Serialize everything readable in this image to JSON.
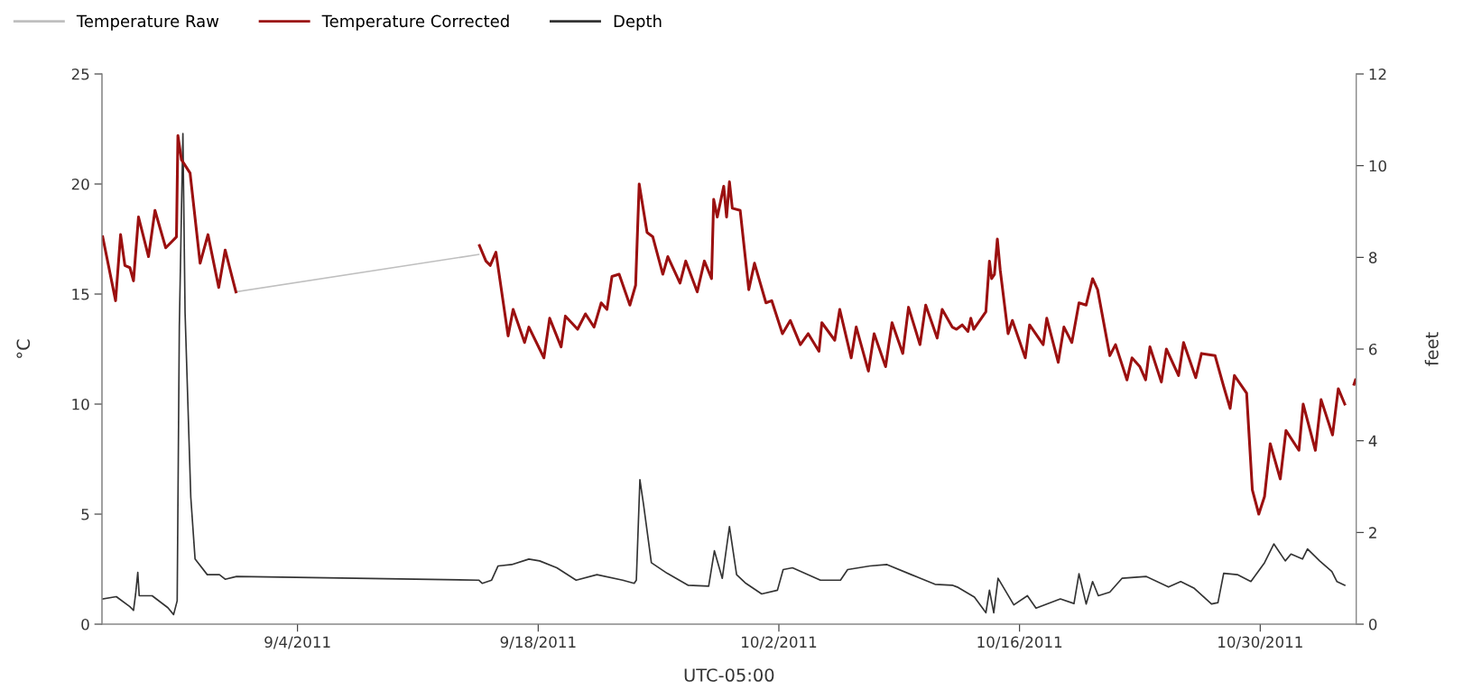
{
  "chart_data": {
    "type": "line",
    "xlabel": "UTC-05:00",
    "ylabel": "°C",
    "y2label": "feet",
    "xlim": [
      "2011-08-23T15:00",
      "2011-11-04T14:00"
    ],
    "xticks": [
      {
        "value": "2011-09-04",
        "label": "9/4/2011"
      },
      {
        "value": "2011-09-18",
        "label": "9/18/2011"
      },
      {
        "value": "2011-10-02",
        "label": "10/2/2011"
      },
      {
        "value": "2011-10-16",
        "label": "10/16/2011"
      },
      {
        "value": "2011-10-30",
        "label": "10/30/2011"
      }
    ],
    "ylim": [
      0,
      25
    ],
    "yticks": [
      0,
      5,
      10,
      15,
      20,
      25
    ],
    "y2lim": [
      0,
      12
    ],
    "y2ticks": [
      0,
      2,
      4,
      6,
      8,
      10,
      12
    ],
    "grid": false,
    "legend": "top left",
    "marker": "none",
    "line_style": "solid",
    "series": [
      {
        "name": "Temperature Raw",
        "color": "#bfbfbf",
        "x": [
          "2011-08-31T10:00",
          "2011-09-14T13:00"
        ],
        "values": [
          15.1,
          16.8
        ]
      },
      {
        "name": "Temperature Corrected",
        "color": "#9b1010",
        "x": [
          "2011-08-23T16:00",
          "2011-08-24T10:00",
          "2011-08-24T17:00",
          "2011-08-24T23:00",
          "2011-08-25T06:00",
          "2011-08-25T11:00",
          "2011-08-25T18:00",
          "2011-08-26T08:00",
          "2011-08-26T17:00",
          "2011-08-27T08:00",
          "2011-08-27T23:00",
          "2011-08-28T01:00",
          "2011-08-28T06:00",
          "2011-08-28T18:00",
          "2011-08-29T08:00",
          "2011-08-29T19:00",
          "2011-08-30T10:00",
          "2011-08-30T19:00",
          "2011-08-31T10:00",
          "2011-09-07T00:00",
          "2011-09-14T14:00",
          "2011-09-14T23:00",
          "2011-09-15T05:00",
          "2011-09-15T13:00",
          "2011-09-16T06:00",
          "2011-09-16T13:00",
          "2011-09-17T05:00",
          "2011-09-17T11:00",
          "2011-09-18T08:00",
          "2011-09-18T16:00",
          "2011-09-19T08:00",
          "2011-09-19T14:00",
          "2011-09-20T07:00",
          "2011-09-20T18:00",
          "2011-09-21T06:00",
          "2011-09-21T16:00",
          "2011-09-22T00:00",
          "2011-09-22T07:00",
          "2011-09-22T17:00",
          "2011-09-23T08:00",
          "2011-09-23T16:00",
          "2011-09-23T21:00",
          "2011-09-24T08:00",
          "2011-09-24T16:00",
          "2011-09-25T06:00",
          "2011-09-25T13:00",
          "2011-09-26T06:00",
          "2011-09-26T14:00",
          "2011-09-27T06:00",
          "2011-09-27T16:00",
          "2011-09-28T02:00",
          "2011-09-28T05:00",
          "2011-09-28T10:00",
          "2011-09-28T19:00",
          "2011-09-28T23:00",
          "2011-09-29T03:00",
          "2011-09-29T07:00",
          "2011-09-29T18:00",
          "2011-09-30T06:00",
          "2011-09-30T14:00",
          "2011-10-01T06:00",
          "2011-10-01T14:00",
          "2011-10-02T05:00",
          "2011-10-02T16:00",
          "2011-10-03T06:00",
          "2011-10-03T17:00",
          "2011-10-04T08:00",
          "2011-10-04T12:00",
          "2011-10-05T06:00",
          "2011-10-05T13:00",
          "2011-10-06T05:00",
          "2011-10-06T12:00",
          "2011-10-07T05:00",
          "2011-10-07T13:00",
          "2011-10-08T05:00",
          "2011-10-08T14:00",
          "2011-10-09T05:00",
          "2011-10-09T13:00",
          "2011-10-10T05:00",
          "2011-10-10T13:00",
          "2011-10-11T05:00",
          "2011-10-11T12:00",
          "2011-10-12T02:00",
          "2011-10-12T08:00",
          "2011-10-12T16:00",
          "2011-10-13T00:00",
          "2011-10-13T04:00",
          "2011-10-13T08:00",
          "2011-10-14T01:00",
          "2011-10-14T06:00",
          "2011-10-14T09:00",
          "2011-10-14T13:00",
          "2011-10-14T17:00",
          "2011-10-14T21:00",
          "2011-10-15T08:00",
          "2011-10-15T14:00",
          "2011-10-16T08:00",
          "2011-10-16T14:00",
          "2011-10-17T09:00",
          "2011-10-17T14:00",
          "2011-10-18T06:00",
          "2011-10-18T14:00",
          "2011-10-19T01:00",
          "2011-10-19T11:00",
          "2011-10-19T21:00",
          "2011-10-20T06:00",
          "2011-10-20T13:00",
          "2011-10-21T06:00",
          "2011-10-21T14:00",
          "2011-10-22T06:00",
          "2011-10-22T13:00",
          "2011-10-23T00:00",
          "2011-10-23T08:00",
          "2011-10-23T14:00",
          "2011-10-24T06:00",
          "2011-10-24T13:00",
          "2011-10-25T06:00",
          "2011-10-25T13:00",
          "2011-10-26T06:00",
          "2011-10-26T14:00",
          "2011-10-27T09:00",
          "2011-10-27T21:00",
          "2011-10-28T06:00",
          "2011-10-28T12:00",
          "2011-10-29T05:00",
          "2011-10-29T13:00",
          "2011-10-29T22:00",
          "2011-10-30T06:00",
          "2011-10-30T14:00",
          "2011-10-31T04:00",
          "2011-10-31T12:00",
          "2011-11-01T06:00",
          "2011-11-01T12:00",
          "2011-11-02T05:00",
          "2011-11-02T13:00",
          "2011-11-03T05:00",
          "2011-11-03T13:00",
          "2011-11-03T22:00",
          "2011-11-04T06:00",
          "2011-11-04T11:00",
          "2011-11-04T13:00"
        ],
        "values": [
          17.6,
          14.7,
          17.7,
          16.3,
          16.2,
          15.6,
          18.5,
          16.7,
          18.8,
          17.1,
          17.6,
          22.2,
          21.1,
          20.5,
          16.4,
          17.7,
          15.3,
          17.0,
          15.1,
          null,
          17.2,
          16.5,
          16.3,
          16.9,
          13.1,
          14.3,
          12.8,
          13.5,
          12.1,
          13.9,
          12.6,
          14.0,
          13.4,
          14.1,
          13.5,
          14.6,
          14.3,
          15.8,
          15.9,
          14.5,
          15.4,
          20.0,
          17.8,
          17.6,
          15.9,
          16.7,
          15.5,
          16.5,
          15.1,
          16.5,
          15.7,
          19.3,
          18.5,
          19.9,
          18.5,
          20.1,
          18.9,
          18.8,
          15.2,
          16.4,
          14.6,
          14.7,
          13.2,
          13.8,
          12.7,
          13.2,
          12.4,
          13.7,
          12.9,
          14.3,
          12.1,
          13.5,
          11.5,
          13.2,
          11.7,
          13.7,
          12.3,
          14.4,
          12.7,
          14.5,
          13.0,
          14.3,
          13.5,
          13.4,
          13.6,
          13.3,
          13.9,
          13.4,
          14.2,
          16.5,
          15.7,
          15.9,
          17.5,
          16.1,
          13.2,
          13.8,
          12.1,
          13.6,
          12.7,
          13.9,
          11.9,
          13.5,
          12.8,
          14.6,
          14.5,
          15.7,
          15.2,
          12.2,
          12.7,
          11.1,
          12.1,
          11.7,
          11.1,
          12.6,
          11.0,
          12.5,
          11.3,
          12.8,
          11.2,
          12.3,
          12.2,
          10.8,
          9.8,
          11.3,
          10.5,
          6.1,
          5.0,
          5.8,
          8.2,
          6.6,
          8.8,
          7.9,
          10.0,
          7.9,
          10.2,
          8.6,
          10.7,
          10.0,
          null,
          10.9,
          11.1
        ]
      },
      {
        "name": "Depth",
        "color": "#333333",
        "axis": "y2",
        "x": [
          "2011-08-23T16:00",
          "2011-08-24T11:00",
          "2011-08-25T06:00",
          "2011-08-25T11:00",
          "2011-08-25T14:00",
          "2011-08-25T17:00",
          "2011-08-25T19:00",
          "2011-08-26T13:00",
          "2011-08-27T11:00",
          "2011-08-27T19:00",
          "2011-08-28T00:00",
          "2011-08-28T03:00",
          "2011-08-28T08:00",
          "2011-08-28T11:00",
          "2011-08-28T19:00",
          "2011-08-29T01:00",
          "2011-08-29T18:00",
          "2011-08-30T11:00",
          "2011-08-30T19:00",
          "2011-08-31T11:00",
          "2011-09-14T13:00",
          "2011-09-14T18:00",
          "2011-09-15T07:00",
          "2011-09-15T16:00",
          "2011-09-16T11:00",
          "2011-09-17T11:00",
          "2011-09-18T02:00",
          "2011-09-19T02:00",
          "2011-09-20T05:00",
          "2011-09-21T10:00",
          "2011-09-22T22:00",
          "2011-09-23T14:00",
          "2011-09-23T17:00",
          "2011-09-23T22:00",
          "2011-09-24T03:00",
          "2011-09-24T14:00",
          "2011-09-25T12:00",
          "2011-09-26T17:00",
          "2011-09-27T22:00",
          "2011-09-28T06:00",
          "2011-09-28T17:00",
          "2011-09-29T03:00",
          "2011-09-29T13:00",
          "2011-09-30T02:00",
          "2011-10-01T00:00",
          "2011-10-01T22:00",
          "2011-10-02T06:00",
          "2011-10-02T19:00",
          "2011-10-04T10:00",
          "2011-10-05T14:00",
          "2011-10-06T00:00",
          "2011-10-07T07:00",
          "2011-10-08T07:00",
          "2011-10-09T17:00",
          "2011-10-11T02:00",
          "2011-10-12T02:00",
          "2011-10-12T09:00",
          "2011-10-13T09:00",
          "2011-10-14T01:00",
          "2011-10-14T06:00",
          "2011-10-14T12:00",
          "2011-10-14T18:00",
          "2011-10-15T16:00",
          "2011-10-16T11:00",
          "2011-10-16T23:00",
          "2011-10-18T09:00",
          "2011-10-19T04:00",
          "2011-10-19T11:00",
          "2011-10-19T21:00",
          "2011-10-20T06:00",
          "2011-10-20T14:00",
          "2011-10-21T06:00",
          "2011-10-21T23:00",
          "2011-10-23T09:00",
          "2011-10-24T16:00",
          "2011-10-25T09:00",
          "2011-10-26T04:00",
          "2011-10-27T04:00",
          "2011-10-27T13:00",
          "2011-10-27T21:00",
          "2011-10-28T16:00",
          "2011-10-29T11:00",
          "2011-10-30T06:00",
          "2011-10-30T19:00",
          "2011-10-31T11:00",
          "2011-10-31T19:00",
          "2011-11-01T11:00",
          "2011-11-01T18:00",
          "2011-11-02T11:00",
          "2011-11-03T04:00",
          "2011-11-03T11:00",
          "2011-11-03T22:00"
        ],
        "values": [
          0.55,
          0.6,
          0.38,
          0.3,
          0.66,
          1.13,
          0.62,
          0.62,
          0.36,
          0.21,
          0.51,
          6.5,
          10.7,
          6.8,
          2.77,
          1.42,
          1.08,
          1.08,
          0.98,
          1.04,
          0.96,
          0.89,
          0.96,
          1.27,
          1.3,
          1.42,
          1.38,
          1.23,
          0.96,
          1.08,
          0.96,
          0.89,
          0.96,
          3.15,
          2.62,
          1.34,
          1.11,
          0.85,
          0.83,
          1.6,
          1.0,
          2.13,
          1.08,
          0.89,
          0.66,
          0.74,
          1.19,
          1.23,
          0.96,
          0.96,
          1.19,
          1.27,
          1.3,
          1.08,
          0.87,
          0.85,
          0.81,
          0.59,
          0.25,
          0.74,
          0.25,
          1.0,
          0.42,
          0.62,
          0.35,
          0.55,
          0.45,
          1.1,
          0.44,
          0.93,
          0.62,
          0.7,
          1.0,
          1.04,
          0.81,
          0.93,
          0.78,
          0.44,
          0.47,
          1.11,
          1.08,
          0.93,
          1.34,
          1.75,
          1.38,
          1.53,
          1.42,
          1.64,
          1.38,
          1.15,
          0.93,
          0.85
        ]
      }
    ]
  }
}
